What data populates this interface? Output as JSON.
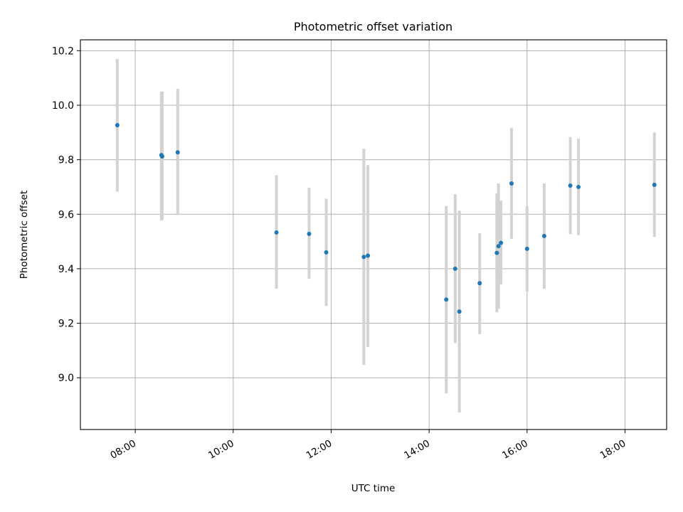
{
  "chart_data": {
    "type": "scatter",
    "title": "Photometric offset variation",
    "xlabel": "UTC time",
    "ylabel": "Photometric offset",
    "x_unit": "hours",
    "xlim": [
      6.88,
      18.85
    ],
    "ylim": [
      8.81,
      10.24
    ],
    "x_ticks": [
      {
        "value": 8,
        "label": "08:00"
      },
      {
        "value": 10,
        "label": "10:00"
      },
      {
        "value": 12,
        "label": "12:00"
      },
      {
        "value": 14,
        "label": "14:00"
      },
      {
        "value": 16,
        "label": "16:00"
      },
      {
        "value": 18,
        "label": "18:00"
      }
    ],
    "y_ticks": [
      {
        "value": 9.0,
        "label": "9.0"
      },
      {
        "value": 9.2,
        "label": "9.2"
      },
      {
        "value": 9.4,
        "label": "9.4"
      },
      {
        "value": 9.6,
        "label": "9.6"
      },
      {
        "value": 9.8,
        "label": "9.8"
      },
      {
        "value": 10.0,
        "label": "10.0"
      },
      {
        "value": 10.2,
        "label": "10.2"
      }
    ],
    "grid": true,
    "marker_color": "#1f77b4",
    "errorbar_color": "#d3d3d3",
    "points": [
      {
        "x": 7.633,
        "y": 9.927,
        "low": 9.683,
        "high": 10.17
      },
      {
        "x": 8.533,
        "y": 9.817,
        "low": 9.577,
        "high": 10.05
      },
      {
        "x": 8.55,
        "y": 9.812,
        "low": 9.58,
        "high": 10.05
      },
      {
        "x": 8.867,
        "y": 9.827,
        "low": 9.597,
        "high": 10.06
      },
      {
        "x": 10.883,
        "y": 9.533,
        "low": 9.327,
        "high": 9.743
      },
      {
        "x": 11.55,
        "y": 9.528,
        "low": 9.363,
        "high": 9.697
      },
      {
        "x": 11.9,
        "y": 9.46,
        "low": 9.263,
        "high": 9.657
      },
      {
        "x": 12.667,
        "y": 9.443,
        "low": 9.047,
        "high": 9.84
      },
      {
        "x": 12.75,
        "y": 9.448,
        "low": 9.113,
        "high": 9.78
      },
      {
        "x": 14.35,
        "y": 9.287,
        "low": 8.943,
        "high": 9.63
      },
      {
        "x": 14.533,
        "y": 9.4,
        "low": 9.127,
        "high": 9.673
      },
      {
        "x": 14.617,
        "y": 9.243,
        "low": 8.873,
        "high": 9.613
      },
      {
        "x": 15.033,
        "y": 9.347,
        "low": 9.16,
        "high": 9.53
      },
      {
        "x": 15.383,
        "y": 9.458,
        "low": 9.24,
        "high": 9.677
      },
      {
        "x": 15.417,
        "y": 9.483,
        "low": 9.253,
        "high": 9.713
      },
      {
        "x": 15.467,
        "y": 9.495,
        "low": 9.343,
        "high": 9.65
      },
      {
        "x": 15.683,
        "y": 9.713,
        "low": 9.51,
        "high": 9.917
      },
      {
        "x": 16.0,
        "y": 9.473,
        "low": 9.317,
        "high": 9.63
      },
      {
        "x": 16.35,
        "y": 9.52,
        "low": 9.327,
        "high": 9.713
      },
      {
        "x": 16.883,
        "y": 9.705,
        "low": 9.527,
        "high": 9.883
      },
      {
        "x": 17.05,
        "y": 9.7,
        "low": 9.523,
        "high": 9.877
      },
      {
        "x": 18.6,
        "y": 9.708,
        "low": 9.517,
        "high": 9.9
      }
    ]
  }
}
